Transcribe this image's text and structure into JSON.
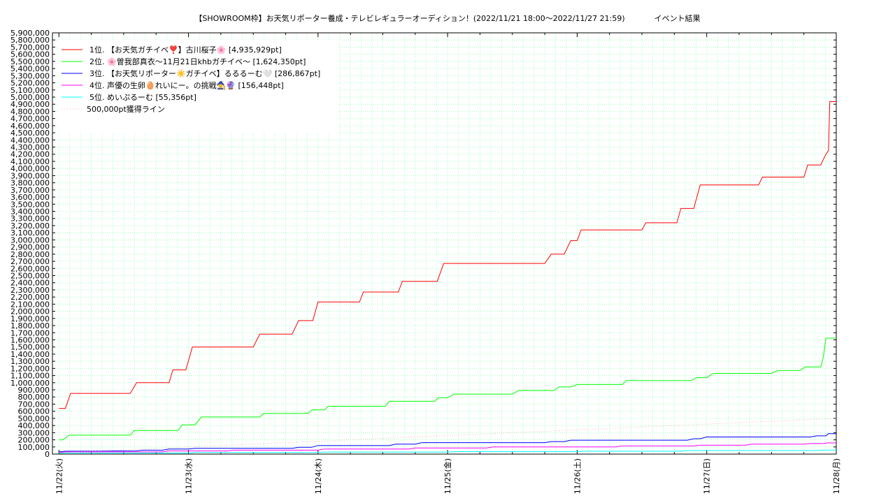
{
  "header": {
    "title": "【SHOWROOM枠】お天気リポーター養成・テレビレギュラーオーディション！(2022/11/21 18:00～2022/11/27 21:59)",
    "subtitle": "イベント結果"
  },
  "chart_data": {
    "type": "line",
    "title": "【SHOWROOM枠】お天気リポーター養成・テレビレギュラーオーディション！(2022/11/21 18:00～2022/11/27 21:59)",
    "subtitle": "イベント結果",
    "xlabel": "",
    "ylabel": "",
    "ylim": [
      0,
      5900000
    ],
    "y_step": 100000,
    "x_ticks": [
      "11/22(火)",
      "11/23(水)",
      "11/24(木)",
      "11/25(金)",
      "11/26(土)",
      "11/27(日)",
      "11/28(月)"
    ],
    "x_domain_days": [
      -0.05,
      6.0
    ],
    "grid": true,
    "legend_position": "top-left",
    "colors": {
      "rank1": "#ff0000",
      "rank2": "#00ff00",
      "rank3": "#0000ff",
      "rank4": "#ff00ff",
      "rank5": "#00ffff",
      "threshold": "#ffb0b0",
      "grid": "#a0ffc0"
    },
    "series": [
      {
        "name": "1位. 【お天気ガチイベ❣️】古川桜子🌸 [4,935,929pt]",
        "color": "#ff0000",
        "points": [
          [
            0.0,
            640000
          ],
          [
            0.05,
            640000
          ],
          [
            0.09,
            850000
          ],
          [
            0.55,
            850000
          ],
          [
            0.6,
            1000000
          ],
          [
            0.85,
            1000000
          ],
          [
            0.88,
            1180000
          ],
          [
            0.98,
            1180000
          ],
          [
            1.03,
            1500000
          ],
          [
            1.5,
            1500000
          ],
          [
            1.55,
            1680000
          ],
          [
            1.8,
            1680000
          ],
          [
            1.85,
            1870000
          ],
          [
            1.96,
            1870000
          ],
          [
            2.0,
            2130000
          ],
          [
            2.32,
            2130000
          ],
          [
            2.35,
            2270000
          ],
          [
            2.62,
            2270000
          ],
          [
            2.65,
            2420000
          ],
          [
            2.92,
            2420000
          ],
          [
            2.97,
            2670000
          ],
          [
            3.75,
            2670000
          ],
          [
            3.8,
            2800000
          ],
          [
            3.9,
            2800000
          ],
          [
            3.95,
            2990000
          ],
          [
            4.0,
            2990000
          ],
          [
            4.03,
            3140000
          ],
          [
            4.5,
            3140000
          ],
          [
            4.53,
            3240000
          ],
          [
            4.77,
            3240000
          ],
          [
            4.8,
            3440000
          ],
          [
            4.9,
            3440000
          ],
          [
            4.95,
            3770000
          ],
          [
            5.4,
            3770000
          ],
          [
            5.43,
            3880000
          ],
          [
            5.75,
            3880000
          ],
          [
            5.78,
            4050000
          ],
          [
            5.88,
            4050000
          ],
          [
            5.92,
            4200000
          ],
          [
            5.94,
            4250000
          ],
          [
            5.95,
            4935929
          ],
          [
            6.0,
            4935929
          ]
        ]
      },
      {
        "name": "2位. 🌸曽我部真衣〜11月21日khbガチイベ〜 [1,624,350pt]",
        "color": "#00ff00",
        "points": [
          [
            0.0,
            200000
          ],
          [
            0.03,
            200000
          ],
          [
            0.08,
            265000
          ],
          [
            0.55,
            265000
          ],
          [
            0.58,
            330000
          ],
          [
            0.92,
            330000
          ],
          [
            0.95,
            410000
          ],
          [
            1.05,
            410000
          ],
          [
            1.1,
            520000
          ],
          [
            1.55,
            520000
          ],
          [
            1.58,
            570000
          ],
          [
            1.92,
            570000
          ],
          [
            1.96,
            620000
          ],
          [
            2.05,
            620000
          ],
          [
            2.08,
            670000
          ],
          [
            2.52,
            670000
          ],
          [
            2.55,
            740000
          ],
          [
            2.9,
            740000
          ],
          [
            2.93,
            790000
          ],
          [
            3.0,
            790000
          ],
          [
            3.05,
            840000
          ],
          [
            3.5,
            840000
          ],
          [
            3.55,
            890000
          ],
          [
            3.82,
            890000
          ],
          [
            3.86,
            940000
          ],
          [
            3.95,
            940000
          ],
          [
            4.0,
            975000
          ],
          [
            4.35,
            975000
          ],
          [
            4.38,
            1030000
          ],
          [
            4.88,
            1030000
          ],
          [
            4.92,
            1070000
          ],
          [
            5.0,
            1070000
          ],
          [
            5.05,
            1130000
          ],
          [
            5.5,
            1130000
          ],
          [
            5.55,
            1170000
          ],
          [
            5.72,
            1170000
          ],
          [
            5.76,
            1220000
          ],
          [
            5.88,
            1220000
          ],
          [
            5.9,
            1360000
          ],
          [
            5.92,
            1624350
          ],
          [
            6.0,
            1624350
          ]
        ]
      },
      {
        "name": "3位. 【お天気リポーター☀️ガチイベ】るるるーむ🤍 [286,867pt]",
        "color": "#0000ff",
        "points": [
          [
            0.0,
            30000
          ],
          [
            0.05,
            40000
          ],
          [
            0.6,
            45000
          ],
          [
            0.65,
            55000
          ],
          [
            0.8,
            55000
          ],
          [
            0.85,
            70000
          ],
          [
            1.0,
            70000
          ],
          [
            1.05,
            80000
          ],
          [
            1.8,
            80000
          ],
          [
            1.85,
            95000
          ],
          [
            1.95,
            95000
          ],
          [
            2.0,
            120000
          ],
          [
            2.55,
            120000
          ],
          [
            2.6,
            140000
          ],
          [
            2.75,
            140000
          ],
          [
            2.8,
            160000
          ],
          [
            3.75,
            160000
          ],
          [
            3.8,
            175000
          ],
          [
            3.9,
            175000
          ],
          [
            3.95,
            195000
          ],
          [
            4.85,
            195000
          ],
          [
            4.9,
            215000
          ],
          [
            4.95,
            215000
          ],
          [
            5.0,
            240000
          ],
          [
            5.8,
            240000
          ],
          [
            5.85,
            255000
          ],
          [
            5.92,
            255000
          ],
          [
            5.94,
            286867
          ],
          [
            6.0,
            286867
          ]
        ]
      },
      {
        "name": "4位. 声優の生卵🥚れいにー。の挑戦🧙‍♀️🔮 [156,448pt]",
        "color": "#ff00ff",
        "points": [
          [
            0.0,
            20000
          ],
          [
            0.05,
            30000
          ],
          [
            0.8,
            30000
          ],
          [
            0.85,
            45000
          ],
          [
            1.3,
            45000
          ],
          [
            1.35,
            55000
          ],
          [
            2.0,
            55000
          ],
          [
            2.05,
            70000
          ],
          [
            2.7,
            70000
          ],
          [
            2.75,
            85000
          ],
          [
            3.3,
            85000
          ],
          [
            3.35,
            100000
          ],
          [
            4.3,
            100000
          ],
          [
            4.35,
            115000
          ],
          [
            4.9,
            115000
          ],
          [
            4.95,
            125000
          ],
          [
            5.3,
            125000
          ],
          [
            5.35,
            140000
          ],
          [
            5.75,
            140000
          ],
          [
            5.8,
            148000
          ],
          [
            5.9,
            148000
          ],
          [
            5.93,
            156448
          ],
          [
            6.0,
            156448
          ]
        ]
      },
      {
        "name": "5位. めいぷるーむ [55,356pt]",
        "color": "#00ffff",
        "points": [
          [
            0.0,
            10000
          ],
          [
            0.05,
            15000
          ],
          [
            1.0,
            15000
          ],
          [
            1.05,
            22000
          ],
          [
            2.0,
            22000
          ],
          [
            2.05,
            28000
          ],
          [
            3.0,
            28000
          ],
          [
            3.05,
            34000
          ],
          [
            4.0,
            34000
          ],
          [
            4.05,
            40000
          ],
          [
            4.8,
            40000
          ],
          [
            4.85,
            50000
          ],
          [
            5.85,
            50000
          ],
          [
            5.9,
            55356
          ],
          [
            6.0,
            55356
          ]
        ]
      },
      {
        "name": "500,000pt獲得ライン",
        "color": "#ffb0b0",
        "dotted": true,
        "points": [
          [
            0.0,
            20000
          ],
          [
            1.0,
            100000
          ],
          [
            2.0,
            180000
          ],
          [
            3.0,
            260000
          ],
          [
            4.0,
            340000
          ],
          [
            5.0,
            420000
          ],
          [
            6.0,
            500000
          ]
        ]
      }
    ]
  }
}
